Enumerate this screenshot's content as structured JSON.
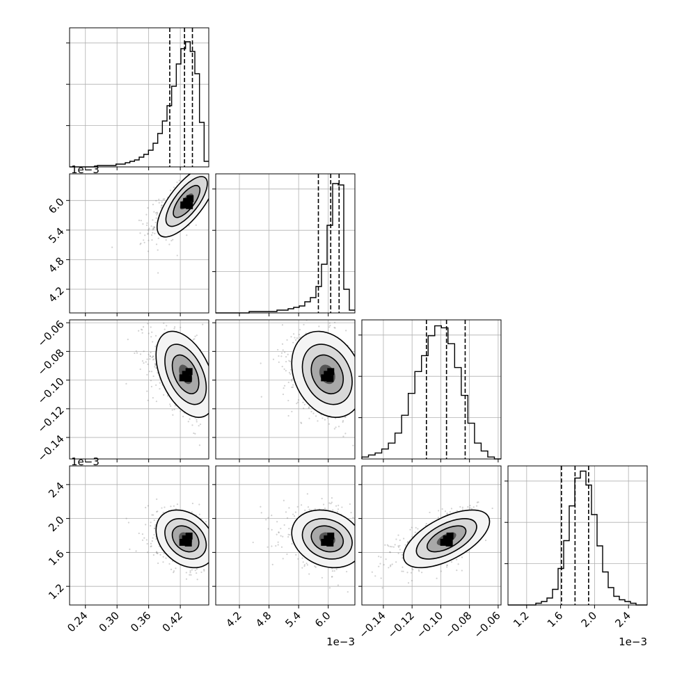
{
  "chart_data": {
    "type": "corner",
    "parameters": [
      {
        "id": "p0",
        "range": [
          0.21,
          0.474
        ],
        "ticks": [
          0.24,
          0.3,
          0.36,
          0.42
        ],
        "tick_labels": [
          "0.24",
          "0.30",
          "0.36",
          "0.42"
        ],
        "offset_label": "",
        "quantiles": [
          0.4,
          0.428,
          0.443
        ],
        "hist": [
          0,
          0,
          0,
          0,
          0,
          0,
          1,
          1,
          1,
          1,
          2,
          2,
          3,
          4,
          5,
          7,
          9,
          12,
          17,
          24,
          33,
          44,
          58,
          74,
          85,
          90,
          83,
          67,
          32,
          4
        ],
        "hist_max": 100
      },
      {
        "id": "p1",
        "range": [
          3.72,
          6.54
        ],
        "ticks": [
          4.2,
          4.8,
          5.4,
          6.0
        ],
        "tick_labels": [
          "4.2",
          "4.8",
          "5.4",
          "6.0"
        ],
        "offset_label": "1e−3",
        "quantiles": [
          5.8,
          6.05,
          6.22
        ],
        "hist": [
          0,
          0,
          0,
          0,
          0,
          0,
          1,
          1,
          1,
          1,
          1,
          2,
          2,
          3,
          4,
          5,
          8,
          11,
          19,
          35,
          63,
          93,
          92,
          17,
          2
        ],
        "hist_max": 100
      },
      {
        "id": "p2",
        "range": [
          -0.155,
          -0.058
        ],
        "ticks": [
          -0.14,
          -0.12,
          -0.1,
          -0.08,
          -0.06
        ],
        "tick_labels": [
          "−0.14",
          "−0.12",
          "−0.10",
          "−0.08",
          "−0.06"
        ],
        "offset_label": "",
        "quantiles": [
          -0.11,
          -0.096,
          -0.083
        ],
        "hist": [
          1,
          2,
          3,
          5,
          8,
          13,
          22,
          33,
          44,
          52,
          62,
          67,
          66,
          58,
          46,
          32,
          18,
          8,
          4,
          1,
          0
        ],
        "hist_max": 70
      },
      {
        "id": "p3",
        "range": [
          0.98,
          2.62
        ],
        "ticks": [
          1.2,
          1.6,
          2.0,
          2.4
        ],
        "tick_labels": [
          "1.2",
          "1.6",
          "2.0",
          "2.4"
        ],
        "offset_label": "1e−3",
        "quantiles": [
          1.61,
          1.77,
          1.93
        ],
        "hist": [
          0,
          0,
          0,
          0,
          0,
          1,
          2,
          4,
          9,
          21,
          37,
          57,
          73,
          77,
          69,
          52,
          34,
          19,
          10,
          5,
          3,
          2,
          1,
          0,
          0
        ],
        "hist_max": 80
      }
    ],
    "correlations": {
      "1-0": {
        "mean": [
          0.432,
          5.98
        ],
        "rho": 0.72
      },
      "2-0": {
        "mean": [
          0.43,
          -0.096
        ],
        "rho": -0.45
      },
      "2-1": {
        "mean": [
          5.98,
          -0.096
        ],
        "rho": -0.25
      },
      "3-0": {
        "mean": [
          0.43,
          1.76
        ],
        "rho": -0.3
      },
      "3-1": {
        "mean": [
          5.98,
          1.76
        ],
        "rho": -0.2
      },
      "3-2": {
        "mean": [
          -0.096,
          1.76
        ],
        "rho": 0.6
      }
    },
    "sigma": [
      0.028,
      0.36,
      0.015,
      0.17
    ],
    "grid": true
  }
}
